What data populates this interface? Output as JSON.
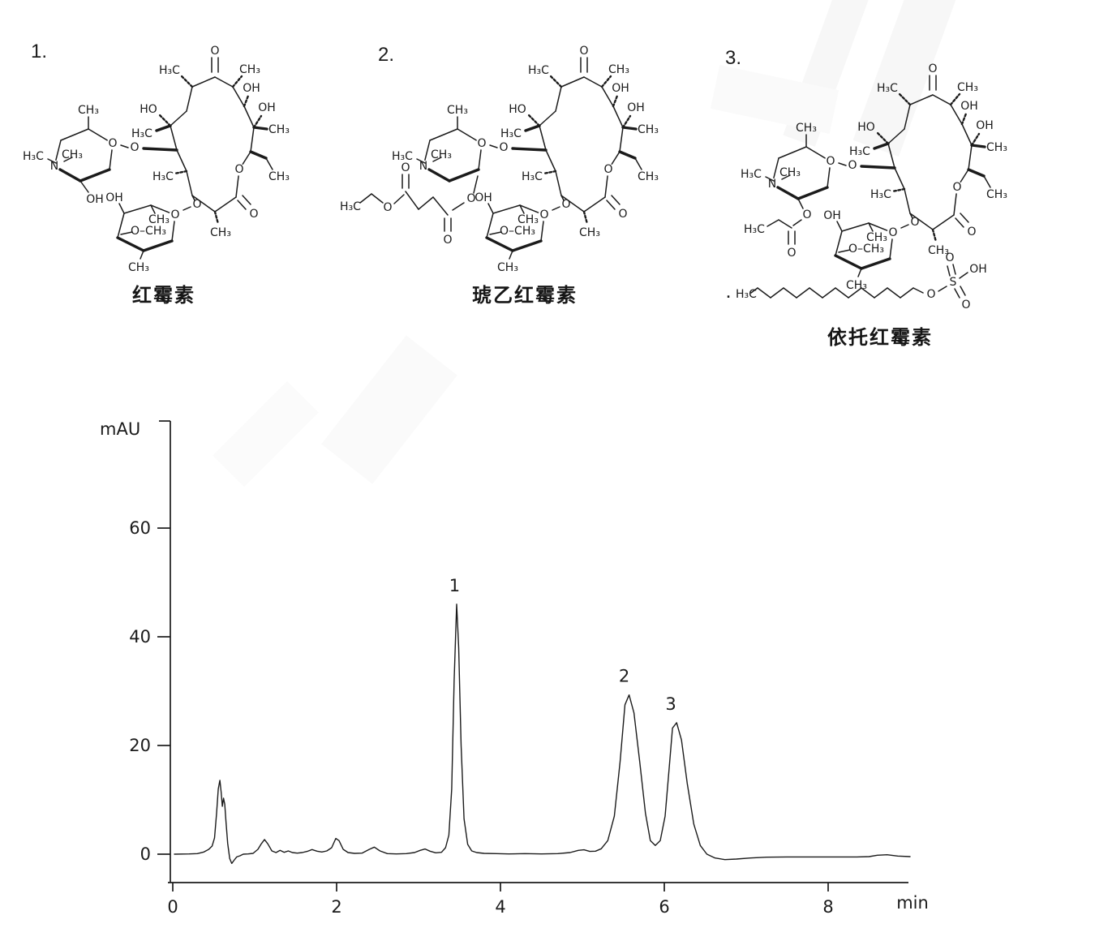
{
  "figure": {
    "background": "#ffffff",
    "ink": "#1b1b1b",
    "watermark_color": "#f7f7f7"
  },
  "structures": {
    "items": [
      {
        "number": "1.",
        "name": "红霉素",
        "peak": "1"
      },
      {
        "number": "2.",
        "name": "琥乙红霉素",
        "peak": "2"
      },
      {
        "number": "3.",
        "name": "依托红霉素",
        "peak": "3"
      }
    ],
    "atom_labels": {
      "o": "O",
      "n": "N",
      "s": "S",
      "oh": "OH",
      "ho": "HO",
      "ch3": "CH₃",
      "h3c": "H₃C",
      "och3": "O–CH₃",
      "dot": "."
    }
  },
  "chart_data": {
    "type": "line",
    "xlabel": "min",
    "ylabel": "mAU",
    "xlim": [
      0,
      9.05
    ],
    "ylim": [
      -5,
      80
    ],
    "xticks": [
      0,
      2,
      4,
      6,
      8
    ],
    "yticks": [
      0,
      20,
      40,
      60
    ],
    "grid": false,
    "legend": false,
    "peaks": [
      {
        "label": "1",
        "t_min": 3.46,
        "height_mAU": 46.0
      },
      {
        "label": "2",
        "t_min": 5.53,
        "height_mAU": 29.3
      },
      {
        "label": "3",
        "t_min": 6.1,
        "height_mAU": 24.2
      }
    ],
    "trace": {
      "t": [
        0.02,
        0.2,
        0.3,
        0.38,
        0.44,
        0.48,
        0.51,
        0.535,
        0.555,
        0.575,
        0.59,
        0.605,
        0.62,
        0.635,
        0.65,
        0.67,
        0.695,
        0.72,
        0.745,
        0.78,
        0.82,
        0.86,
        0.92,
        0.98,
        1.04,
        1.08,
        1.12,
        1.16,
        1.21,
        1.26,
        1.31,
        1.36,
        1.41,
        1.46,
        1.52,
        1.58,
        1.64,
        1.7,
        1.76,
        1.82,
        1.88,
        1.94,
        1.99,
        2.03,
        2.08,
        2.14,
        2.22,
        2.31,
        2.4,
        2.46,
        2.53,
        2.62,
        2.73,
        2.85,
        2.95,
        3.02,
        3.08,
        3.14,
        3.21,
        3.28,
        3.33,
        3.37,
        3.405,
        3.435,
        3.465,
        3.49,
        3.52,
        3.555,
        3.6,
        3.65,
        3.71,
        3.8,
        3.95,
        4.1,
        4.3,
        4.5,
        4.7,
        4.85,
        4.95,
        5.02,
        5.09,
        5.16,
        5.23,
        5.31,
        5.39,
        5.46,
        5.52,
        5.57,
        5.63,
        5.7,
        5.77,
        5.83,
        5.89,
        5.95,
        6.01,
        6.06,
        6.1,
        6.15,
        6.21,
        6.28,
        6.36,
        6.44,
        6.52,
        6.62,
        6.74,
        6.88,
        7.05,
        7.25,
        7.5,
        7.8,
        8.1,
        8.35,
        8.5,
        8.6,
        8.72,
        8.85,
        9.0
      ],
      "mAU": [
        0,
        0.05,
        0.1,
        0.4,
        0.9,
        1.5,
        3.0,
        7.5,
        12.0,
        13.6,
        11.5,
        8.8,
        10.3,
        9.2,
        6.0,
        2.0,
        -0.8,
        -1.7,
        -1.2,
        -0.5,
        -0.3,
        0.0,
        0.05,
        0.15,
        0.9,
        1.9,
        2.7,
        1.9,
        0.6,
        0.3,
        0.7,
        0.35,
        0.6,
        0.3,
        0.2,
        0.3,
        0.5,
        0.85,
        0.55,
        0.4,
        0.6,
        1.2,
        2.9,
        2.5,
        0.9,
        0.3,
        0.15,
        0.2,
        0.9,
        1.3,
        0.6,
        0.1,
        0.05,
        0.1,
        0.3,
        0.7,
        0.95,
        0.55,
        0.25,
        0.35,
        1.2,
        3.5,
        12,
        32,
        46,
        38,
        20,
        6.5,
        1.8,
        0.6,
        0.3,
        0.15,
        0.1,
        0.05,
        0.1,
        0.05,
        0.1,
        0.3,
        0.7,
        0.8,
        0.5,
        0.55,
        1.0,
        2.5,
        7,
        17,
        27.5,
        29.3,
        26,
        17,
        7.5,
        2.5,
        1.6,
        2.5,
        7,
        16,
        23.2,
        24.2,
        21,
        13,
        5.5,
        1.6,
        0.0,
        -0.7,
        -1.0,
        -0.9,
        -0.7,
        -0.55,
        -0.5,
        -0.5,
        -0.5,
        -0.5,
        -0.45,
        -0.2,
        -0.1,
        -0.35,
        -0.45,
        -0.4
      ]
    }
  }
}
